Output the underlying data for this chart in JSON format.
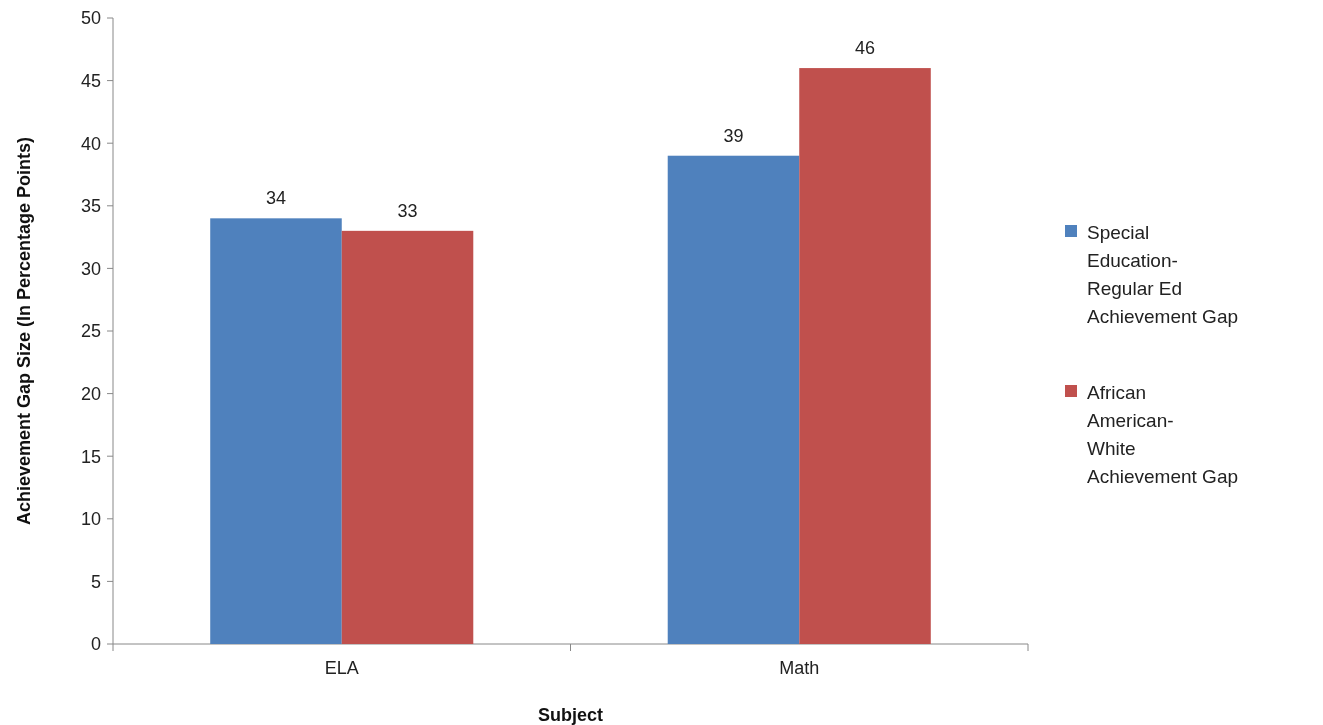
{
  "chart_data": {
    "type": "bar",
    "xlabel": "Subject",
    "ylabel": "Achievement Gap Size (In Percentage Points)",
    "categories": [
      "ELA",
      "Math"
    ],
    "series": [
      {
        "name": "Special Education-Regular Ed Achievement Gap",
        "color": "#4f81bd",
        "values": [
          34,
          39
        ]
      },
      {
        "name": "African American-White Achievement Gap",
        "color": "#c0504d",
        "values": [
          33,
          46
        ]
      }
    ],
    "ylim": [
      0,
      50
    ],
    "yticks": [
      0,
      5,
      10,
      15,
      20,
      25,
      30,
      35,
      40,
      45,
      50
    ],
    "grid": false,
    "legend": "right",
    "data_labels": true
  }
}
